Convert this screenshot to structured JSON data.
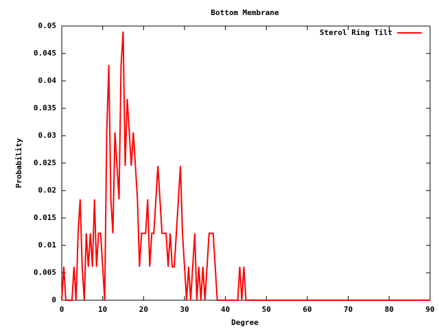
{
  "chart_data": {
    "type": "line",
    "title": "Bottom Membrane",
    "x_label": "Degree",
    "y_label": "Probability",
    "x": [
      0,
      0.5,
      1,
      1.5,
      2,
      2.5,
      3,
      3.5,
      4,
      4.5,
      5,
      5.5,
      6,
      6.5,
      7,
      7.5,
      8,
      8.5,
      9,
      9.5,
      10,
      10.5,
      11,
      11.5,
      12,
      12.5,
      13,
      13.5,
      14,
      14.5,
      15,
      15.5,
      16,
      16.5,
      17,
      17.5,
      18,
      18.5,
      19,
      19.5,
      20,
      20.5,
      21,
      21.5,
      22,
      22.5,
      23,
      23.5,
      24,
      24.5,
      25,
      25.5,
      26,
      26.5,
      27,
      27.5,
      28,
      28.5,
      29,
      29.5,
      30,
      30.5,
      31,
      31.5,
      32,
      32.5,
      33,
      33.5,
      34,
      34.5,
      35,
      35.5,
      36,
      36.5,
      37,
      37.5,
      38,
      38.5,
      39,
      39.5,
      40,
      40.5,
      41,
      41.5,
      42,
      42.5,
      43,
      43.5,
      44,
      44.5,
      45,
      45.5,
      46,
      90
    ],
    "series": [
      {
        "name": "Sterol Ring Tilt",
        "color": "#ff0000",
        "values": [
          0,
          0.0061,
          0,
          0,
          0,
          0,
          0.0061,
          0,
          0.0122,
          0.0184,
          0.0061,
          0,
          0.0122,
          0.0061,
          0.0122,
          0.0061,
          0.0184,
          0.0061,
          0.0122,
          0.0122,
          0.0061,
          0,
          0.0306,
          0.0429,
          0.0184,
          0.0122,
          0.0306,
          0.0245,
          0.0184,
          0.0429,
          0.049,
          0.0245,
          0.0367,
          0.0306,
          0.0245,
          0.0306,
          0.0245,
          0.0184,
          0.0061,
          0.0122,
          0.0122,
          0.0122,
          0.0184,
          0.0061,
          0.0122,
          0.0122,
          0.0184,
          0.0245,
          0.0184,
          0.0122,
          0.0122,
          0.0122,
          0.0061,
          0.0122,
          0.0061,
          0.0061,
          0.0122,
          0.0184,
          0.0245,
          0.0122,
          0.0061,
          0,
          0.0061,
          0,
          0.0061,
          0.0122,
          0,
          0.0061,
          0,
          0.0061,
          0,
          0.0061,
          0.0122,
          0.0122,
          0.0122,
          0.0061,
          0,
          0,
          0,
          0,
          0,
          0,
          0,
          0,
          0,
          0,
          0,
          0.0061,
          0,
          0.0061,
          0,
          0,
          0,
          0
        ]
      }
    ],
    "xlim": [
      0,
      90
    ],
    "xticks": [
      0,
      10,
      20,
      30,
      40,
      50,
      60,
      70,
      80,
      90
    ],
    "ylim": [
      0,
      0.05
    ],
    "yticks": [
      0,
      0.005,
      0.01,
      0.015,
      0.02,
      0.025,
      0.03,
      0.035,
      0.04,
      0.045,
      0.05
    ],
    "legend": "upper right"
  }
}
